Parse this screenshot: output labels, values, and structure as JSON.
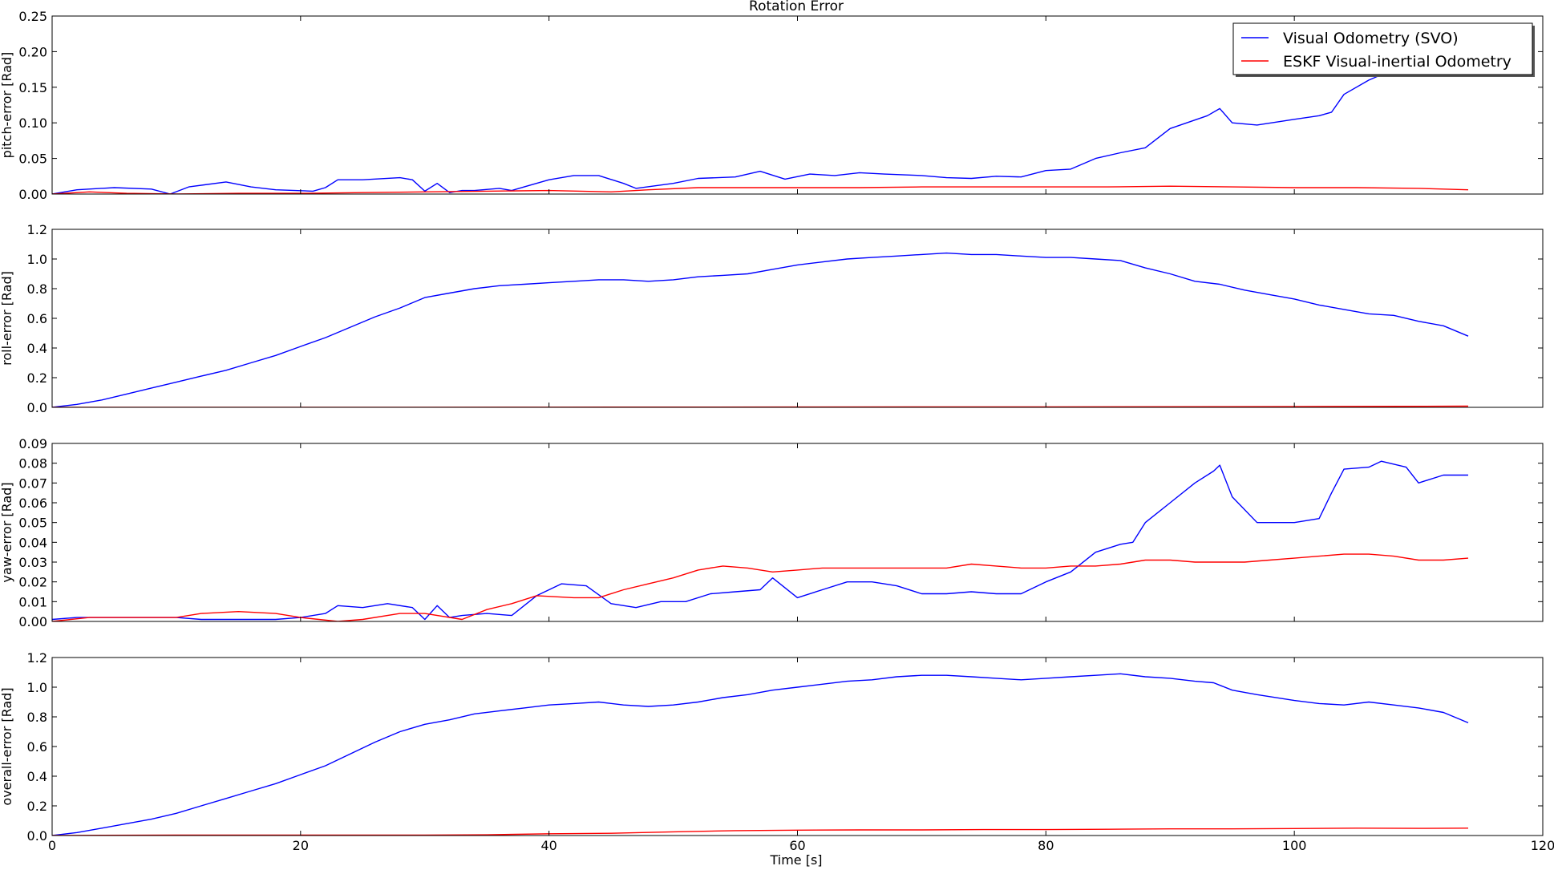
{
  "chart_data": {
    "type": "line",
    "title": "Rotation Error",
    "xlabel": "Time [s]",
    "xlim": [
      0,
      120
    ],
    "xticks": [
      0,
      20,
      40,
      60,
      80,
      100,
      120
    ],
    "legend": {
      "placement": "top-right",
      "entries": [
        {
          "name": "Visual Odometry (SVO)",
          "color": "#0000ff"
        },
        {
          "name": "ESKF Visual-inertial Odometry",
          "color": "#ff0000"
        }
      ]
    },
    "subplots": [
      {
        "ylabel": "pitch-error [Rad]",
        "ylim": [
          0,
          0.25
        ],
        "yticks": [
          0.0,
          0.05,
          0.1,
          0.15,
          0.2,
          0.25
        ],
        "ytick_labels": [
          "0.00",
          "0.05",
          "0.10",
          "0.15",
          "0.20",
          "0.25"
        ],
        "series": [
          {
            "name": "Visual Odometry (SVO)",
            "color": "#0000ff",
            "x": [
              0,
              2,
              5,
              8,
              9.5,
              11,
              14,
              16,
              18,
              21,
              22,
              23,
              25,
              28,
              29,
              30,
              31,
              32,
              33,
              34,
              36,
              37,
              38,
              40,
              42,
              44,
              46,
              47,
              50,
              52,
              55,
              57,
              59,
              61,
              63,
              65,
              67,
              70,
              72,
              74,
              76,
              78,
              80,
              82,
              84,
              86,
              88,
              90,
              93,
              94,
              95,
              97,
              100,
              102,
              103,
              104,
              106,
              108,
              109
            ],
            "y": [
              0.0,
              0.006,
              0.009,
              0.007,
              0.0,
              0.01,
              0.017,
              0.01,
              0.006,
              0.004,
              0.009,
              0.02,
              0.02,
              0.023,
              0.02,
              0.004,
              0.015,
              0.002,
              0.005,
              0.005,
              0.008,
              0.005,
              0.01,
              0.02,
              0.026,
              0.026,
              0.015,
              0.008,
              0.015,
              0.022,
              0.024,
              0.032,
              0.021,
              0.028,
              0.026,
              0.03,
              0.028,
              0.026,
              0.023,
              0.022,
              0.025,
              0.024,
              0.033,
              0.035,
              0.05,
              0.058,
              0.065,
              0.092,
              0.11,
              0.12,
              0.1,
              0.097,
              0.105,
              0.11,
              0.115,
              0.14,
              0.16,
              0.175,
              0.185
            ]
          },
          {
            "name": "ESKF Visual-inertial Odometry",
            "color": "#ff0000",
            "x": [
              0,
              3,
              6,
              10,
              15,
              20,
              25,
              30,
              35,
              40,
              45,
              48,
              52,
              55,
              60,
              65,
              70,
              75,
              80,
              85,
              90,
              95,
              100,
              105,
              110,
              114
            ],
            "y": [
              0.0,
              0.003,
              0.001,
              0.0,
              0.001,
              0.001,
              0.002,
              0.003,
              0.004,
              0.005,
              0.003,
              0.006,
              0.009,
              0.009,
              0.009,
              0.009,
              0.01,
              0.01,
              0.01,
              0.01,
              0.011,
              0.01,
              0.009,
              0.009,
              0.008,
              0.006
            ]
          }
        ]
      },
      {
        "ylabel": "roll-error [Rad]",
        "ylim": [
          0,
          1.2
        ],
        "yticks": [
          0.0,
          0.2,
          0.4,
          0.6,
          0.8,
          1.0,
          1.2
        ],
        "ytick_labels": [
          "0.0",
          "0.2",
          "0.4",
          "0.6",
          "0.8",
          "1.0",
          "1.2"
        ],
        "series": [
          {
            "name": "Visual Odometry (SVO)",
            "color": "#0000ff",
            "x": [
              0,
              2,
              4,
              6,
              8,
              10,
              12,
              14,
              16,
              18,
              20,
              22,
              24,
              26,
              28,
              30,
              32,
              34,
              36,
              38,
              40,
              42,
              44,
              46,
              48,
              50,
              52,
              54,
              56,
              58,
              60,
              62,
              64,
              66,
              68,
              70,
              72,
              74,
              76,
              78,
              80,
              82,
              84,
              86,
              88,
              90,
              92,
              94,
              96,
              98,
              100,
              102,
              104,
              106,
              108,
              110,
              112,
              114
            ],
            "y": [
              0.0,
              0.02,
              0.05,
              0.09,
              0.13,
              0.17,
              0.21,
              0.25,
              0.3,
              0.35,
              0.41,
              0.47,
              0.54,
              0.61,
              0.67,
              0.74,
              0.77,
              0.8,
              0.82,
              0.83,
              0.84,
              0.85,
              0.86,
              0.86,
              0.85,
              0.86,
              0.88,
              0.89,
              0.9,
              0.93,
              0.96,
              0.98,
              1.0,
              1.01,
              1.02,
              1.03,
              1.04,
              1.03,
              1.03,
              1.02,
              1.01,
              1.01,
              1.0,
              0.99,
              0.94,
              0.9,
              0.85,
              0.83,
              0.79,
              0.76,
              0.73,
              0.69,
              0.66,
              0.63,
              0.62,
              0.58,
              0.55,
              0.48
            ]
          },
          {
            "name": "ESKF Visual-inertial Odometry",
            "color": "#ff0000",
            "x": [
              0,
              20,
              40,
              60,
              80,
              100,
              114
            ],
            "y": [
              0.0,
              0.0,
              0.001,
              0.002,
              0.003,
              0.005,
              0.008
            ]
          }
        ]
      },
      {
        "ylabel": "yaw-error [Rad]",
        "ylim": [
          0,
          0.09
        ],
        "yticks": [
          0.0,
          0.01,
          0.02,
          0.03,
          0.04,
          0.05,
          0.06,
          0.07,
          0.08,
          0.09
        ],
        "ytick_labels": [
          "0.00",
          "0.01",
          "0.02",
          "0.03",
          "0.04",
          "0.05",
          "0.06",
          "0.07",
          "0.08",
          "0.09"
        ],
        "series": [
          {
            "name": "Visual Odometry (SVO)",
            "color": "#0000ff",
            "x": [
              0,
              2,
              5,
              8,
              10,
              12,
              15,
              18,
              20,
              22,
              23,
              25,
              27,
              29,
              30,
              31,
              32,
              33,
              35,
              37,
              39,
              41,
              43,
              45,
              47,
              49,
              51,
              53,
              55,
              57,
              58,
              60,
              62,
              64,
              66,
              68,
              70,
              72,
              74,
              76,
              78,
              80,
              82,
              84,
              86,
              87,
              88,
              90,
              92,
              93.5,
              94,
              95,
              97,
              100,
              102,
              103,
              104,
              106,
              107,
              109,
              110,
              112,
              114
            ],
            "y": [
              0.001,
              0.002,
              0.002,
              0.002,
              0.002,
              0.001,
              0.001,
              0.001,
              0.002,
              0.004,
              0.008,
              0.007,
              0.009,
              0.007,
              0.001,
              0.008,
              0.002,
              0.003,
              0.004,
              0.003,
              0.013,
              0.019,
              0.018,
              0.009,
              0.007,
              0.01,
              0.01,
              0.014,
              0.015,
              0.016,
              0.022,
              0.012,
              0.016,
              0.02,
              0.02,
              0.018,
              0.014,
              0.014,
              0.015,
              0.014,
              0.014,
              0.02,
              0.025,
              0.035,
              0.039,
              0.04,
              0.05,
              0.06,
              0.07,
              0.076,
              0.079,
              0.063,
              0.05,
              0.05,
              0.052,
              0.065,
              0.077,
              0.078,
              0.081,
              0.078,
              0.07,
              0.074,
              0.074
            ]
          },
          {
            "name": "ESKF Visual-inertial Odometry",
            "color": "#ff0000",
            "x": [
              0,
              3,
              6,
              10,
              12,
              15,
              18,
              20,
              23,
              25,
              28,
              30,
              33,
              35,
              37,
              39,
              42,
              44,
              46,
              48,
              50,
              52,
              54,
              56,
              58,
              60,
              62,
              64,
              66,
              68,
              70,
              72,
              74,
              76,
              78,
              80,
              82,
              84,
              86,
              88,
              90,
              92,
              94,
              96,
              98,
              100,
              102,
              104,
              106,
              108,
              110,
              112,
              114
            ],
            "y": [
              0.0,
              0.002,
              0.002,
              0.002,
              0.004,
              0.005,
              0.004,
              0.002,
              0.0,
              0.001,
              0.004,
              0.004,
              0.001,
              0.006,
              0.009,
              0.013,
              0.012,
              0.012,
              0.016,
              0.019,
              0.022,
              0.026,
              0.028,
              0.027,
              0.025,
              0.026,
              0.027,
              0.027,
              0.027,
              0.027,
              0.027,
              0.027,
              0.029,
              0.028,
              0.027,
              0.027,
              0.028,
              0.028,
              0.029,
              0.031,
              0.031,
              0.03,
              0.03,
              0.03,
              0.031,
              0.032,
              0.033,
              0.034,
              0.034,
              0.033,
              0.031,
              0.031,
              0.032
            ]
          }
        ]
      },
      {
        "ylabel": "overall-error [Rad]",
        "ylim": [
          0,
          1.2
        ],
        "yticks": [
          0.0,
          0.2,
          0.4,
          0.6,
          0.8,
          1.0,
          1.2
        ],
        "ytick_labels": [
          "0.0",
          "0.2",
          "0.4",
          "0.6",
          "0.8",
          "1.0",
          "1.2"
        ],
        "series": [
          {
            "name": "Visual Odometry (SVO)",
            "color": "#0000ff",
            "x": [
              0,
              2,
              4,
              6,
              8,
              10,
              12,
              14,
              16,
              18,
              20,
              22,
              24,
              26,
              28,
              30,
              32,
              34,
              36,
              38,
              40,
              42,
              44,
              46,
              48,
              50,
              52,
              54,
              56,
              58,
              60,
              62,
              64,
              66,
              68,
              70,
              72,
              74,
              76,
              78,
              80,
              82,
              84,
              86,
              88,
              90,
              92,
              93.5,
              95,
              97,
              100,
              102,
              104,
              106,
              108,
              110,
              112,
              114
            ],
            "y": [
              0.0,
              0.02,
              0.05,
              0.08,
              0.11,
              0.15,
              0.2,
              0.25,
              0.3,
              0.35,
              0.41,
              0.47,
              0.55,
              0.63,
              0.7,
              0.75,
              0.78,
              0.82,
              0.84,
              0.86,
              0.88,
              0.89,
              0.9,
              0.88,
              0.87,
              0.88,
              0.9,
              0.93,
              0.95,
              0.98,
              1.0,
              1.02,
              1.04,
              1.05,
              1.07,
              1.08,
              1.08,
              1.07,
              1.06,
              1.05,
              1.06,
              1.07,
              1.08,
              1.09,
              1.07,
              1.06,
              1.04,
              1.03,
              0.98,
              0.95,
              0.91,
              0.89,
              0.88,
              0.9,
              0.88,
              0.86,
              0.83,
              0.76
            ]
          },
          {
            "name": "ESKF Visual-inertial Odometry",
            "color": "#ff0000",
            "x": [
              0,
              10,
              20,
              30,
              35,
              40,
              45,
              50,
              55,
              60,
              65,
              70,
              75,
              80,
              85,
              90,
              95,
              100,
              105,
              110,
              114
            ],
            "y": [
              0.0,
              0.003,
              0.003,
              0.003,
              0.005,
              0.012,
              0.015,
              0.025,
              0.033,
              0.036,
              0.038,
              0.038,
              0.04,
              0.04,
              0.042,
              0.045,
              0.045,
              0.047,
              0.05,
              0.048,
              0.05
            ]
          }
        ]
      }
    ]
  }
}
